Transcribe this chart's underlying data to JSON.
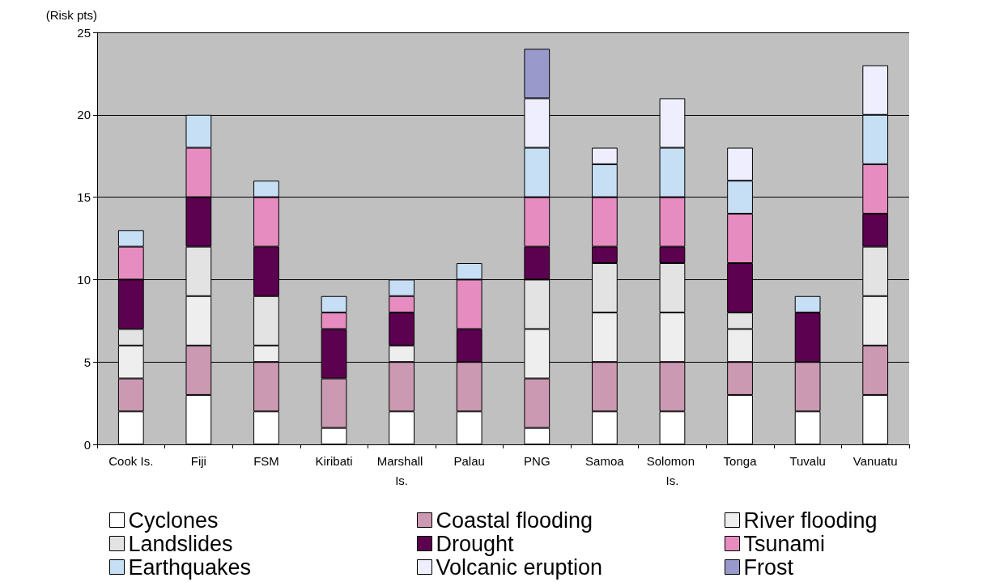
{
  "chart_data": {
    "type": "bar",
    "stacked": true,
    "ylabel": "(Risk pts)",
    "categories": [
      "Cook Is.",
      "Fiji",
      "FSM",
      "Kiribati",
      "Marshall Is.",
      "Palau",
      "PNG",
      "Samoa",
      "Solomon Is.",
      "Tonga",
      "Tuvalu",
      "Vanuatu"
    ],
    "series": [
      {
        "name": "Cyclones",
        "color": "#ffffff",
        "values": [
          2,
          3,
          2,
          1,
          2,
          2,
          1,
          2,
          2,
          3,
          2,
          3
        ]
      },
      {
        "name": "Coastal flooding",
        "color": "#cc99b2",
        "values": [
          2,
          3,
          3,
          3,
          3,
          3,
          3,
          3,
          3,
          2,
          3,
          3
        ]
      },
      {
        "name": "River flooding",
        "color": "#eeeeee",
        "values": [
          2,
          3,
          1,
          0,
          1,
          0,
          3,
          3,
          3,
          2,
          0,
          3
        ]
      },
      {
        "name": "Landslides",
        "color": "#e3e3e3",
        "values": [
          1,
          3,
          3,
          0,
          0,
          0,
          3,
          3,
          3,
          1,
          0,
          3
        ]
      },
      {
        "name": "Drought",
        "color": "#5c0050",
        "values": [
          3,
          3,
          3,
          3,
          2,
          2,
          2,
          1,
          1,
          3,
          3,
          2
        ]
      },
      {
        "name": "Tsunami",
        "color": "#e68cc0",
        "values": [
          2,
          3,
          3,
          1,
          1,
          3,
          3,
          3,
          3,
          3,
          0,
          3
        ]
      },
      {
        "name": "Earthquakes",
        "color": "#c6dff5",
        "values": [
          1,
          2,
          1,
          1,
          1,
          1,
          3,
          2,
          3,
          2,
          1,
          3
        ]
      },
      {
        "name": "Volcanic eruption",
        "color": "#eeeeff",
        "values": [
          0,
          0,
          0,
          0,
          0,
          0,
          3,
          1,
          3,
          2,
          0,
          3
        ]
      },
      {
        "name": "Frost",
        "color": "#9999cc",
        "values": [
          0,
          0,
          0,
          0,
          0,
          0,
          3,
          0,
          0,
          0,
          0,
          0
        ]
      }
    ],
    "ylim": [
      0,
      25
    ],
    "yticks": [
      0,
      5,
      10,
      15,
      20,
      25
    ],
    "grid": "y",
    "legend": "bottom"
  }
}
